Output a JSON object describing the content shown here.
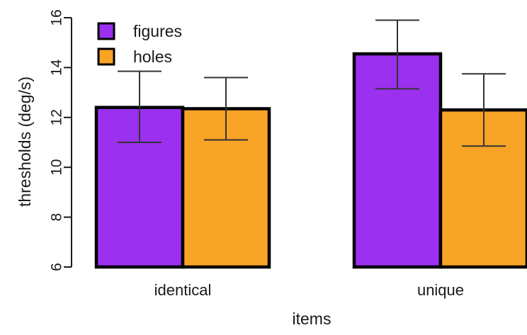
{
  "chart_data": {
    "type": "bar",
    "title": "",
    "xlabel": "items",
    "ylabel": "thresholds (deg/s)",
    "categories": [
      "identical",
      "unique"
    ],
    "ylim": [
      6,
      16
    ],
    "yticks": [
      "6",
      "8",
      "10",
      "12",
      "14",
      "16"
    ],
    "grid": false,
    "legend_position": "top-left",
    "error_bars": true,
    "series": [
      {
        "name": "figures",
        "color": "#9b30ee",
        "values": [
          12.4,
          14.55
        ],
        "err_low": [
          11.0,
          13.15
        ],
        "err_high": [
          13.85,
          15.9
        ]
      },
      {
        "name": "holes",
        "color": "#f8a426",
        "values": [
          12.35,
          12.3
        ],
        "err_low": [
          11.1,
          10.85
        ],
        "err_high": [
          13.6,
          13.75
        ]
      }
    ]
  }
}
